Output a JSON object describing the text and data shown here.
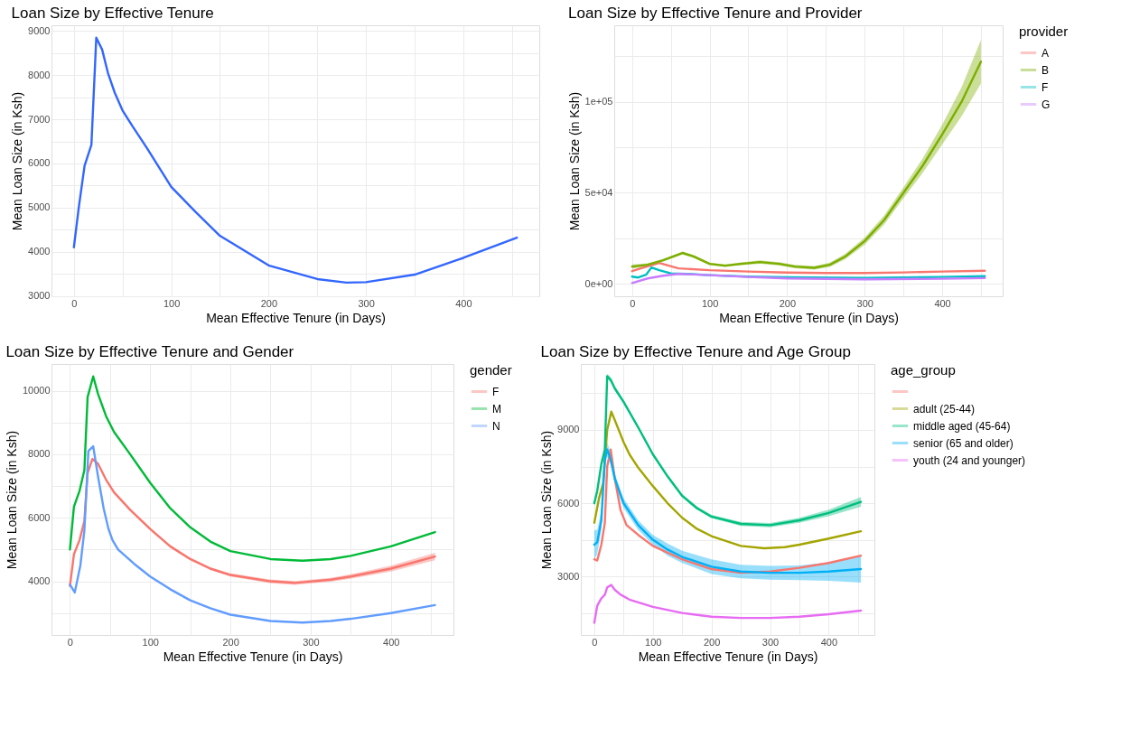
{
  "chart_data": [
    {
      "type": "line",
      "title": "Loan Size by Effective Tenure",
      "xlabel": "Mean Effective Tenure (in Days)",
      "ylabel": "Mean Loan Size (in Ksh)",
      "grid": true,
      "xlim": [
        -23,
        478
      ],
      "ylim": [
        2990,
        9130
      ],
      "xticks": [
        0,
        {
          "value": 50,
          "label": null
        },
        100,
        {
          "value": 150,
          "label": null
        },
        200,
        {
          "value": 250,
          "label": null
        },
        300,
        {
          "value": 350,
          "label": null
        },
        400,
        {
          "value": 450,
          "label": null
        }
      ],
      "yticks": [
        3000,
        {
          "value": 3500,
          "label": null
        },
        4000,
        {
          "value": 4500,
          "label": null
        },
        5000,
        {
          "value": 5500,
          "label": null
        },
        6000,
        {
          "value": 6500,
          "label": null
        },
        7000,
        {
          "value": 7500,
          "label": null
        },
        8000,
        {
          "value": 8500,
          "label": null
        },
        9000
      ],
      "series": [
        {
          "color": "#3366ff",
          "x": [
            0,
            5,
            11,
            18,
            23,
            29,
            35,
            42,
            50,
            60,
            75,
            100,
            125,
            150,
            200,
            250,
            280,
            300,
            350,
            400,
            455
          ],
          "values": [
            4100,
            5000,
            5950,
            6420,
            8850,
            8580,
            8050,
            7600,
            7200,
            6850,
            6350,
            5470,
            4900,
            4360,
            3690,
            3380,
            3300,
            3310,
            3480,
            3860,
            4320
          ]
        }
      ]
    },
    {
      "type": "line",
      "title": "Loan Size by Effective Tenure and Provider",
      "xlabel": "Mean Effective Tenure (in Days)",
      "ylabel": "Mean Loan Size (in Ksh)",
      "legend_title": "provider",
      "legend": "right",
      "grid": true,
      "xlim": [
        -23,
        478
      ],
      "ylim": [
        -6800,
        142000
      ],
      "xticks": [
        0,
        {
          "value": 50,
          "label": null
        },
        100,
        {
          "value": 150,
          "label": null
        },
        200,
        {
          "value": 250,
          "label": null
        },
        300,
        {
          "value": 350,
          "label": null
        },
        400,
        {
          "value": 450,
          "label": null
        }
      ],
      "yticks": [
        {
          "value": 0,
          "label": "0e+00"
        },
        {
          "value": 25000,
          "label": null
        },
        {
          "value": 50000,
          "label": "5e+04"
        },
        {
          "value": 75000,
          "label": null
        },
        {
          "value": 100000,
          "label": "1e+05"
        },
        {
          "value": 125000,
          "label": null
        }
      ],
      "series": [
        {
          "name": "A",
          "color": "#f8766d",
          "x": [
            0,
            15,
            35,
            60,
            100,
            150,
            200,
            250,
            300,
            350,
            400,
            455
          ],
          "values": [
            7000,
            9000,
            11500,
            8500,
            7500,
            6800,
            6200,
            6000,
            6000,
            6300,
            6800,
            7200
          ]
        },
        {
          "name": "B",
          "color": "#7cae00",
          "x": [
            0,
            20,
            40,
            65,
            80,
            100,
            120,
            140,
            165,
            190,
            210,
            235,
            255,
            275,
            300,
            325,
            350,
            375,
            400,
            425,
            450
          ],
          "values": [
            9500,
            10500,
            13000,
            17000,
            15000,
            11000,
            10000,
            11000,
            12000,
            11000,
            9500,
            8800,
            10500,
            15000,
            23500,
            35000,
            50000,
            65000,
            82000,
            100000,
            122000
          ],
          "lower": [
            8300,
            9700,
            12300,
            16200,
            14200,
            10300,
            9300,
            10200,
            11100,
            10100,
            8600,
            7800,
            9300,
            13500,
            21500,
            32500,
            47000,
            61000,
            76500,
            92000,
            110000
          ],
          "upper": [
            10700,
            11300,
            13700,
            17800,
            15800,
            11700,
            10700,
            11800,
            12900,
            11900,
            10400,
            9800,
            11700,
            16500,
            25500,
            37500,
            53000,
            69000,
            87500,
            108000,
            134000
          ]
        },
        {
          "name": "F",
          "color": "#00bfc4",
          "x": [
            0,
            8,
            18,
            25,
            35,
            50,
            70,
            100,
            150,
            200,
            300,
            400,
            455
          ],
          "values": [
            4000,
            3500,
            5000,
            9000,
            7500,
            5800,
            5500,
            4800,
            4000,
            3600,
            3300,
            3800,
            4200
          ]
        },
        {
          "name": "G",
          "color": "#c77cff",
          "x": [
            0,
            20,
            40,
            60,
            100,
            150,
            200,
            300,
            400,
            455
          ],
          "values": [
            500,
            3000,
            4500,
            5500,
            4800,
            3800,
            3000,
            2500,
            2800,
            3200
          ]
        }
      ]
    },
    {
      "type": "line",
      "title": "Loan Size by Effective Tenure and Gender",
      "xlabel": "Mean Effective Tenure (in Days)",
      "ylabel": "Mean Loan Size (in Ksh)",
      "legend_title": "gender",
      "legend": "right",
      "grid": true,
      "xlim": [
        -23,
        478
      ],
      "ylim": [
        2310,
        10840
      ],
      "xticks": [
        0,
        {
          "value": 50,
          "label": null
        },
        100,
        {
          "value": 150,
          "label": null
        },
        200,
        {
          "value": 250,
          "label": null
        },
        300,
        {
          "value": 350,
          "label": null
        },
        400,
        {
          "value": 450,
          "label": null
        }
      ],
      "yticks": [
        {
          "value": 3000,
          "label": null
        },
        4000,
        {
          "value": 5000,
          "label": null
        },
        6000,
        {
          "value": 7000,
          "label": null
        },
        8000,
        {
          "value": 9000,
          "label": null
        },
        10000
      ],
      "series": [
        {
          "name": "F",
          "color": "#f8766d",
          "x": [
            0,
            5,
            12,
            18,
            22,
            28,
            35,
            45,
            55,
            75,
            100,
            125,
            150,
            175,
            200,
            250,
            280,
            325,
            350,
            400,
            455
          ],
          "values": [
            3850,
            4850,
            5300,
            5900,
            7400,
            7850,
            7700,
            7200,
            6800,
            6250,
            5650,
            5100,
            4700,
            4400,
            4200,
            4000,
            3950,
            4050,
            4150,
            4400,
            4780
          ],
          "lower": [
            3770,
            4790,
            5250,
            5850,
            7350,
            7800,
            7650,
            7160,
            6760,
            6210,
            5610,
            5060,
            4660,
            4360,
            4150,
            3940,
            3890,
            3990,
            4080,
            4310,
            4660
          ],
          "upper": [
            3930,
            4910,
            5350,
            5950,
            7450,
            7900,
            7750,
            7240,
            6840,
            6290,
            5690,
            5140,
            4740,
            4440,
            4250,
            4060,
            4010,
            4110,
            4220,
            4490,
            4900
          ]
        },
        {
          "name": "M",
          "color": "#00ba38",
          "x": [
            0,
            5,
            12,
            18,
            22,
            29,
            35,
            45,
            55,
            75,
            100,
            125,
            150,
            175,
            200,
            250,
            290,
            325,
            350,
            400,
            455
          ],
          "values": [
            5000,
            6350,
            6850,
            7500,
            9800,
            10450,
            9900,
            9200,
            8700,
            8000,
            7100,
            6300,
            5700,
            5250,
            4950,
            4700,
            4650,
            4700,
            4800,
            5100,
            5550
          ]
        },
        {
          "name": "N",
          "color": "#619cff",
          "x": [
            0,
            6,
            13,
            18,
            23,
            29,
            35,
            42,
            48,
            53,
            60,
            80,
            100,
            125,
            150,
            175,
            200,
            250,
            290,
            325,
            350,
            400,
            455
          ],
          "values": [
            3900,
            3650,
            4500,
            5600,
            8100,
            8250,
            7300,
            6300,
            5650,
            5300,
            5000,
            4550,
            4150,
            3750,
            3400,
            3150,
            2950,
            2750,
            2700,
            2750,
            2820,
            3000,
            3250
          ]
        }
      ]
    },
    {
      "type": "line",
      "title": "Loan Size by Effective Tenure and Age Group",
      "xlabel": "Mean Effective Tenure (in Days)",
      "ylabel": "Mean Loan Size (in Ksh)",
      "legend_title": "age_group",
      "legend": "right",
      "grid": true,
      "xlim": [
        -23,
        478
      ],
      "ylim": [
        600,
        11700
      ],
      "xticks": [
        0,
        {
          "value": 50,
          "label": null
        },
        100,
        {
          "value": 150,
          "label": null
        },
        200,
        {
          "value": 250,
          "label": null
        },
        300,
        {
          "value": 350,
          "label": null
        },
        400,
        {
          "value": 450,
          "label": null
        }
      ],
      "yticks": [
        {
          "value": 1500,
          "label": null
        },
        3000,
        {
          "value": 4500,
          "label": null
        },
        6000,
        {
          "value": 7500,
          "label": null
        },
        9000,
        {
          "value": 10500,
          "label": null
        }
      ],
      "series": [
        {
          "color": "#f8766d",
          "x": [
            0,
            5,
            12,
            18,
            22,
            28,
            35,
            45,
            55,
            75,
            100,
            150,
            200,
            250,
            300,
            350,
            400,
            455
          ],
          "values": [
            3700,
            3650,
            4300,
            5200,
            7500,
            8200,
            7000,
            5700,
            5100,
            4700,
            4250,
            3700,
            3300,
            3150,
            3200,
            3350,
            3550,
            3850
          ]
        },
        {
          "name": "adult (25-44)",
          "color": "#a3a500",
          "x": [
            0,
            8,
            15,
            22,
            29,
            35,
            50,
            60,
            75,
            100,
            125,
            150,
            175,
            200,
            250,
            290,
            325,
            350,
            400,
            455
          ],
          "values": [
            5200,
            6200,
            6800,
            9000,
            9750,
            9400,
            8500,
            8000,
            7450,
            6700,
            6000,
            5400,
            4950,
            4650,
            4250,
            4150,
            4200,
            4300,
            4550,
            4850
          ]
        },
        {
          "name": "middle aged (45-64)",
          "color": "#00bf7d",
          "x": [
            0,
            5,
            12,
            18,
            22,
            28,
            35,
            50,
            75,
            100,
            125,
            150,
            175,
            200,
            250,
            300,
            350,
            400,
            455
          ],
          "values": [
            6000,
            6500,
            7600,
            8200,
            11200,
            11050,
            10700,
            10150,
            9100,
            8000,
            7100,
            6300,
            5800,
            5450,
            5150,
            5100,
            5300,
            5600,
            6050
          ],
          "lower": [
            5850,
            6380,
            7500,
            8100,
            11100,
            10950,
            10610,
            10070,
            9030,
            7930,
            7030,
            6230,
            5730,
            5380,
            5070,
            5010,
            5200,
            5470,
            5850
          ],
          "upper": [
            6150,
            6620,
            7700,
            8300,
            11300,
            11150,
            10790,
            10230,
            9170,
            8070,
            7170,
            6370,
            5870,
            5520,
            5230,
            5190,
            5400,
            5730,
            6250
          ]
        },
        {
          "name": "senior (65 and older)",
          "color": "#00b0f6",
          "x": [
            0,
            5,
            12,
            18,
            22,
            28,
            35,
            50,
            75,
            100,
            125,
            150,
            200,
            250,
            300,
            350,
            400,
            455
          ],
          "values": [
            4300,
            4400,
            5300,
            7800,
            8200,
            7800,
            7000,
            6000,
            5100,
            4500,
            4100,
            3800,
            3400,
            3200,
            3150,
            3150,
            3200,
            3300
          ],
          "lower": [
            3700,
            3900,
            4900,
            7500,
            7900,
            7550,
            6800,
            5800,
            4900,
            4300,
            3850,
            3550,
            3100,
            2920,
            2870,
            2850,
            2820,
            2750
          ],
          "upper": [
            4900,
            4900,
            5700,
            8100,
            8500,
            8050,
            7200,
            6200,
            5300,
            4700,
            4350,
            4050,
            3700,
            3480,
            3430,
            3450,
            3580,
            3850
          ]
        },
        {
          "name": "youth (24 and younger)",
          "color": "#e76bf3",
          "x": [
            0,
            5,
            12,
            18,
            22,
            29,
            35,
            45,
            60,
            100,
            150,
            200,
            250,
            300,
            350,
            400,
            455
          ],
          "values": [
            1100,
            1800,
            2100,
            2250,
            2550,
            2650,
            2450,
            2250,
            2050,
            1750,
            1500,
            1350,
            1300,
            1300,
            1350,
            1450,
            1600
          ]
        }
      ]
    }
  ]
}
